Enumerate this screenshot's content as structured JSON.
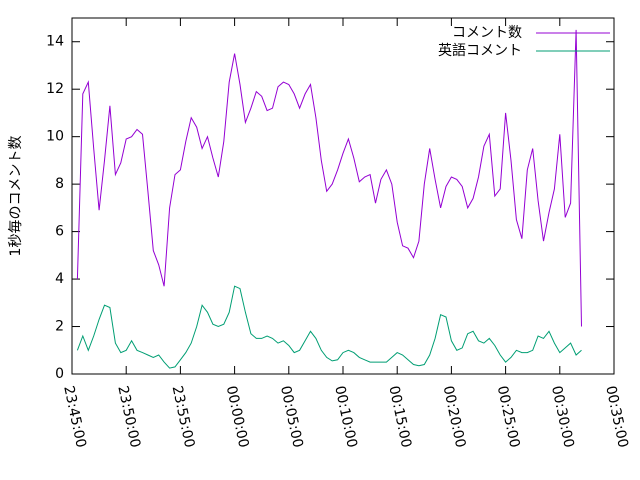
{
  "chart_data": {
    "type": "line",
    "y_label": "1秒毎のコメント数",
    "x": [
      0.5,
      1,
      1.5,
      2,
      2.5,
      3,
      3.5,
      4,
      4.5,
      5,
      5.5,
      6,
      6.5,
      7,
      7.5,
      8,
      8.5,
      9,
      9.5,
      10,
      10.5,
      11,
      11.5,
      12,
      12.5,
      13,
      13.5,
      14,
      14.5,
      15,
      15.5,
      16,
      16.5,
      17,
      17.5,
      18,
      18.5,
      19,
      19.5,
      20,
      20.5,
      21,
      21.5,
      22,
      22.5,
      23,
      23.5,
      24,
      24.5,
      25,
      25.5,
      26,
      26.5,
      27,
      27.5,
      28,
      28.5,
      29,
      29.5,
      30,
      30.5,
      31,
      31.5,
      32,
      32.5,
      33,
      33.5,
      34,
      34.5,
      35,
      35.5,
      36,
      36.5,
      37,
      37.5,
      38,
      38.5,
      39,
      39.5,
      40,
      40.5,
      41,
      41.5,
      42,
      42.5,
      43,
      43.5,
      44,
      44.5,
      45,
      45.5,
      46,
      46.5,
      47
    ],
    "series": [
      {
        "name": "コメント数",
        "color": "#9400d3",
        "values": [
          4,
          11.8,
          12.3,
          9.5,
          6.9,
          9,
          11.3,
          8.4,
          8.9,
          9.9,
          10,
          10.3,
          10.1,
          7.7,
          5.2,
          4.6,
          3.7,
          7,
          8.4,
          8.6,
          9.8,
          10.8,
          10.4,
          9.5,
          10,
          9.1,
          8.3,
          9.8,
          12.3,
          13.5,
          12.2,
          10.6,
          11.2,
          11.9,
          11.7,
          11.1,
          11.2,
          12.1,
          12.3,
          12.2,
          11.8,
          11.2,
          11.8,
          12.2,
          10.8,
          9,
          7.7,
          8,
          8.6,
          9.3,
          9.9,
          9.1,
          8.1,
          8.3,
          8.4,
          7.2,
          8.2,
          8.6,
          8,
          6.4,
          5.4,
          5.3,
          4.9,
          5.6,
          8,
          9.5,
          8.2,
          7,
          7.9,
          8.3,
          8.2,
          7.9,
          7,
          7.4,
          8.3,
          9.6,
          10.1,
          7.5,
          7.8,
          11,
          9,
          6.5,
          5.7,
          8.6,
          9.5,
          7.3,
          5.6,
          6.8,
          7.8,
          10.1,
          6.6,
          7.2,
          14.5,
          2
        ]
      },
      {
        "name": "英語コメント",
        "color": "#009e73",
        "values": [
          1.0,
          1.6,
          1.0,
          1.6,
          2.3,
          2.9,
          2.8,
          1.3,
          0.9,
          1.0,
          1.4,
          1.0,
          0.9,
          0.8,
          0.7,
          0.8,
          0.5,
          0.25,
          0.3,
          0.6,
          0.9,
          1.3,
          2.0,
          2.9,
          2.6,
          2.1,
          2.0,
          2.1,
          2.6,
          3.7,
          3.6,
          2.6,
          1.7,
          1.5,
          1.5,
          1.6,
          1.5,
          1.3,
          1.4,
          1.2,
          0.9,
          1.0,
          1.4,
          1.8,
          1.5,
          1.0,
          0.7,
          0.55,
          0.6,
          0.9,
          1.0,
          0.9,
          0.7,
          0.6,
          0.5,
          0.5,
          0.5,
          0.5,
          0.7,
          0.9,
          0.8,
          0.6,
          0.4,
          0.35,
          0.4,
          0.8,
          1.5,
          2.5,
          2.4,
          1.4,
          1.0,
          1.1,
          1.7,
          1.8,
          1.4,
          1.3,
          1.5,
          1.2,
          0.8,
          0.5,
          0.7,
          1.0,
          0.9,
          0.9,
          1.0,
          1.6,
          1.5,
          1.8,
          1.3,
          0.9,
          1.1,
          1.3,
          0.8,
          1.0
        ]
      }
    ],
    "xlim": [
      0,
      50
    ],
    "xticks": [
      {
        "value": 0,
        "label": "23:45:00"
      },
      {
        "value": 5,
        "label": "23:50:00"
      },
      {
        "value": 10,
        "label": "23:55:00"
      },
      {
        "value": 15,
        "label": "00:00:00"
      },
      {
        "value": 20,
        "label": "00:05:00"
      },
      {
        "value": 25,
        "label": "00:10:00"
      },
      {
        "value": 30,
        "label": "00:15:00"
      },
      {
        "value": 35,
        "label": "00:20:00"
      },
      {
        "value": 40,
        "label": "00:25:00"
      },
      {
        "value": 45,
        "label": "00:30:00"
      },
      {
        "value": 50,
        "label": "00:35:00"
      }
    ],
    "ylim": [
      0,
      15
    ],
    "yticks": [
      0,
      2,
      4,
      6,
      8,
      10,
      12,
      14
    ],
    "grid": false,
    "legend": "top-right"
  }
}
